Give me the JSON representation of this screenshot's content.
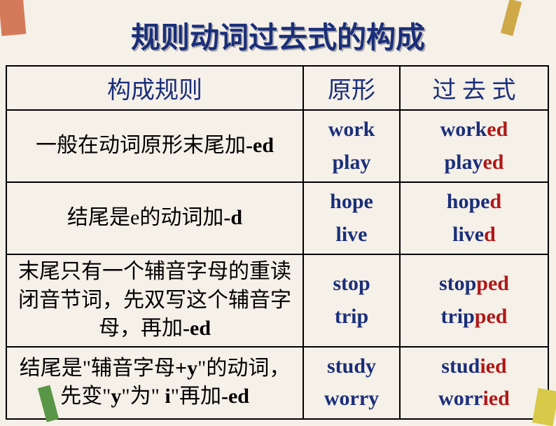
{
  "title": "规则动词过去式的构成",
  "headers": {
    "rule": "构成规则",
    "base": "原形",
    "past": "过 去 式"
  },
  "rows": [
    {
      "rule_parts": [
        "一般在动词原形末尾加",
        "-ed"
      ],
      "base": [
        "work",
        "play"
      ],
      "past": [
        {
          "stem": "work",
          "ending": "ed"
        },
        {
          "stem": "play",
          "ending": "ed"
        }
      ]
    },
    {
      "rule_parts": [
        "结尾是e的动词加",
        "-d"
      ],
      "base": [
        "hope",
        "live"
      ],
      "past": [
        {
          "stem": "hope",
          "ending": "d"
        },
        {
          "stem": "live",
          "ending": "d"
        }
      ]
    },
    {
      "rule_parts": [
        "末尾只有一个辅音字母的重读闭音节词，先双写这个辅音字母，再加",
        "-ed"
      ],
      "base": [
        "stop",
        "trip"
      ],
      "past": [
        {
          "stem": "stop",
          "ending": "ped"
        },
        {
          "stem": "trip",
          "ending": "ped"
        }
      ]
    },
    {
      "rule_html": "结尾是<span class=\"quote\">\"</span>辅音字母<span class=\"suffix\">+y</span><span class=\"quote\">\"</span>的动词，先变<span class=\"quote\">\"</span><span class=\"y-letter\">y</span><span class=\"quote\">\"</span>为<span class=\"quote\">\"</span> <span class=\"y-letter\">i</span><span class=\"quote\">\"</span>再加<span class=\"suffix\">-ed</span>",
      "base": [
        "study",
        "worry"
      ],
      "past": [
        {
          "stem": "stud",
          "ending": "ied"
        },
        {
          "stem": "worr",
          "ending": "ied"
        }
      ]
    }
  ],
  "colors": {
    "title": "#1a2e7a",
    "blue_text": "#1a2e7a",
    "red_text": "#b01818",
    "background": "#f5f0e8",
    "border": "#000000"
  }
}
